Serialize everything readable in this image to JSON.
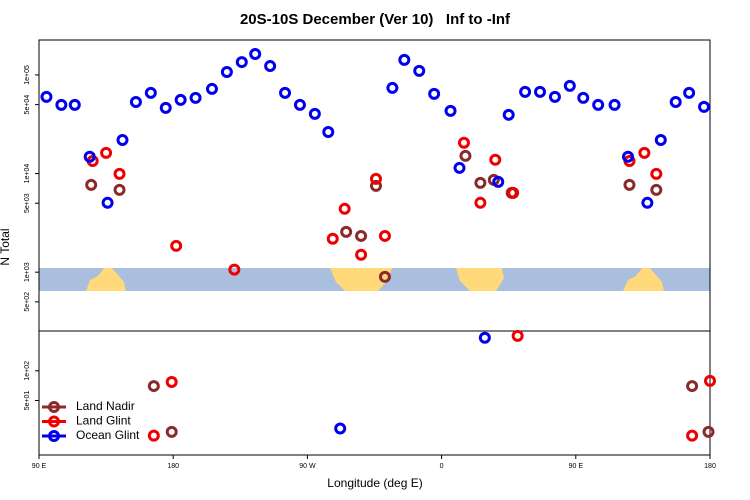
{
  "chart_data": {
    "type": "scatter",
    "title": "20S-10S December (Ver 10)   Inf to -Inf",
    "x_label": "Longitude (deg E)",
    "y_label": "N Total",
    "xlim": [
      90,
      540
    ],
    "xticks": [
      {
        "value": 90,
        "label": "90 E"
      },
      180,
      {
        "value": 270,
        "label": "90 W"
      },
      {
        "value": 360,
        "label": "0"
      },
      {
        "value": 450,
        "label": "90 E"
      },
      {
        "value": 540,
        "label": "180"
      }
    ],
    "ylim": [
      14,
      226000
    ],
    "log_y": true,
    "yticks": [
      {
        "value": 100000,
        "label": "1e+05"
      },
      {
        "value": 50000,
        "label": "5e+04"
      },
      {
        "value": 10000,
        "label": "1e+04"
      },
      {
        "value": 5000,
        "label": "5e+03"
      },
      {
        "value": 1000,
        "label": "1e+03"
      },
      {
        "value": 500,
        "label": "5e+02"
      },
      {
        "value": 100,
        "label": "1e+02"
      },
      {
        "value": 50,
        "label": "5e+01"
      }
    ],
    "legend": "bottomleft",
    "series": [
      {
        "name": "Land Nadir",
        "color": "#8b2a2a",
        "x": [
          125,
          144,
          167,
          179,
          296,
          306,
          316,
          322,
          376,
          386,
          395,
          407,
          486,
          504,
          528,
          539
        ],
        "values": [
          7680,
          6830,
          70,
          24,
          2560,
          2330,
          7500,
          897,
          15100,
          8040,
          8630,
          6370,
          7680,
          6830,
          70,
          24
        ]
      },
      {
        "name": "Land Glint",
        "color": "#ee0000",
        "x": [
          126,
          135,
          144,
          167,
          179,
          182,
          221,
          287,
          295,
          306,
          316,
          322,
          375,
          386,
          396,
          408,
          411,
          486,
          496,
          504,
          528,
          540
        ],
        "values": [
          13400,
          16200,
          9930,
          22,
          77,
          1850,
          1060,
          2180,
          4390,
          1500,
          8830,
          2330,
          20500,
          5050,
          13800,
          6370,
          226,
          13400,
          16200,
          9930,
          22,
          79
        ]
      },
      {
        "name": "Ocean Glint",
        "color": "#0000ee",
        "x": [
          95,
          105,
          114,
          124,
          136,
          146,
          155,
          165,
          175,
          185,
          195,
          206,
          216,
          226,
          235,
          245,
          255,
          265,
          275,
          284,
          292,
          327,
          335,
          345,
          355,
          366,
          372,
          389,
          398,
          405,
          416,
          426,
          436,
          446,
          455,
          465,
          476,
          485,
          498,
          507,
          517,
          526,
          536
        ],
        "values": [
          59900,
          49700,
          49700,
          14800,
          5050,
          21900,
          53200,
          65700,
          46300,
          55800,
          58500,
          72100,
          107000,
          135000,
          163000,
          123000,
          65700,
          49700,
          40300,
          26400,
          26,
          73800,
          142000,
          110000,
          64200,
          43200,
          11400,
          216,
          8240,
          39400,
          67300,
          67300,
          59900,
          77400,
          58500,
          49700,
          49700,
          14800,
          5050,
          21900,
          53200,
          65700,
          47400
        ]
      }
    ]
  }
}
